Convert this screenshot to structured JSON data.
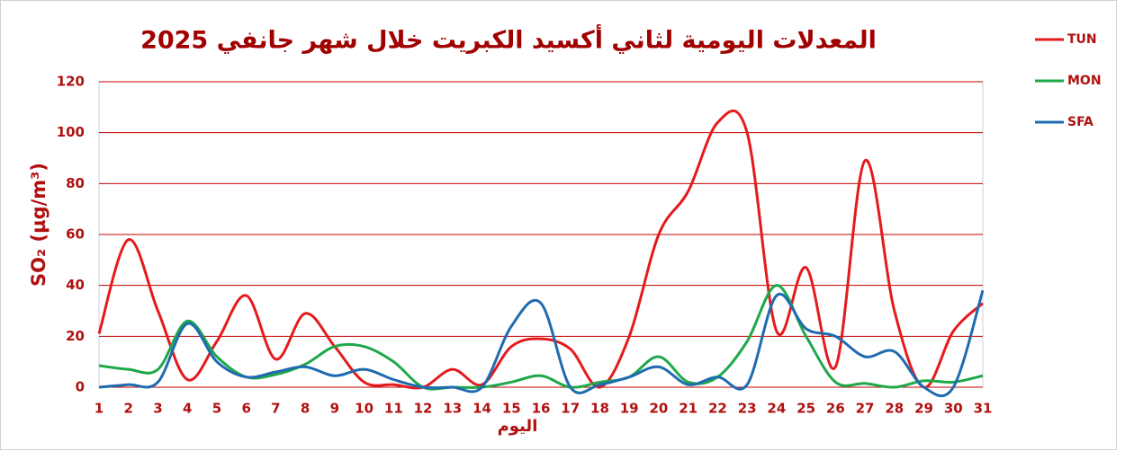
{
  "chart_data": {
    "type": "line",
    "title": "المعدلات اليومية لثاني أكسيد الكبريت خلال شهر جانفي 2025",
    "x_label": "اليوم",
    "y_label": "SO₂ (µg/m³)",
    "categories": [
      "1",
      "2",
      "3",
      "4",
      "5",
      "6",
      "7",
      "8",
      "9",
      "10",
      "11",
      "12",
      "13",
      "14",
      "15",
      "16",
      "17",
      "18",
      "19",
      "20",
      "21",
      "22",
      "23",
      "24",
      "25",
      "26",
      "27",
      "28",
      "29",
      "30",
      "31"
    ],
    "series": [
      {
        "name": "TUN",
        "color": "#e41a1c",
        "values": [
          21,
          58,
          30,
          3,
          18,
          36,
          11,
          29,
          16,
          2,
          1,
          0,
          7,
          1,
          16,
          19,
          15,
          0,
          20,
          60,
          77,
          104,
          100,
          22,
          47,
          8,
          89,
          30,
          0,
          22,
          33
        ]
      },
      {
        "name": "MON",
        "color": "#1fa84a",
        "values": [
          8.5,
          7,
          7,
          26,
          12,
          4,
          5,
          9,
          16,
          16,
          10,
          0,
          0,
          0,
          2,
          4.5,
          0,
          2,
          4,
          12,
          2,
          4,
          18,
          40,
          20,
          2,
          1.5,
          0,
          2.5,
          2,
          4.5
        ]
      },
      {
        "name": "SFA",
        "color": "#1f6bb0",
        "values": [
          0,
          1,
          2,
          25,
          10,
          4,
          6,
          8,
          4.5,
          7,
          3,
          0,
          0,
          0,
          24,
          33,
          0,
          1,
          4,
          8,
          1,
          4,
          1,
          36,
          23,
          20,
          12,
          14,
          0,
          0,
          38
        ]
      }
    ],
    "ylim": [
      0,
      120
    ],
    "yticks": [
      0,
      20,
      40,
      60,
      80,
      100,
      120
    ],
    "grid": true,
    "legend": "right"
  }
}
